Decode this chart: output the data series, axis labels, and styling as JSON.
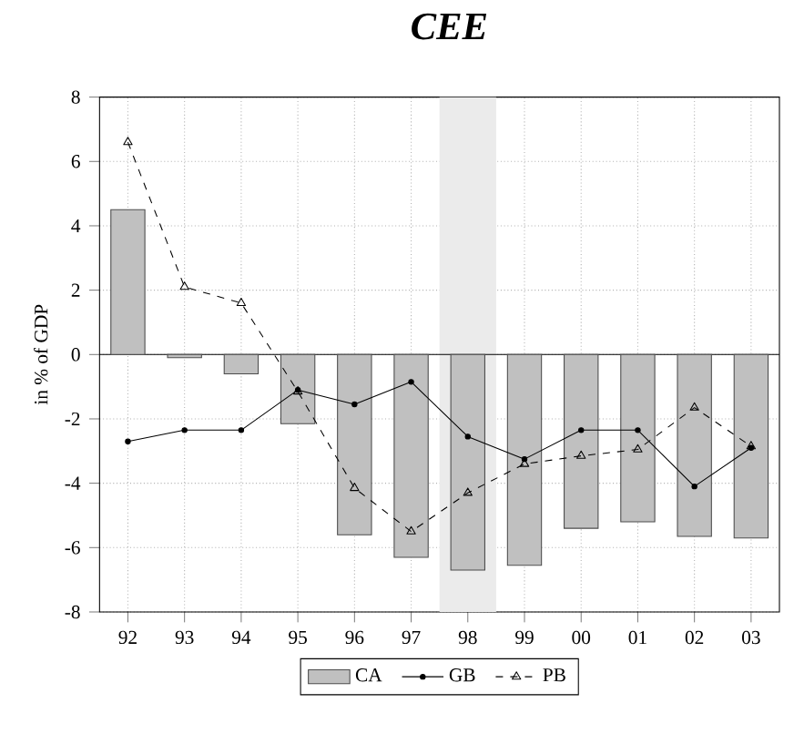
{
  "chart_data": {
    "type": "bar",
    "title": "**CEE**",
    "ylabel": "in % of GDP",
    "categories": [
      "92",
      "93",
      "94",
      "95",
      "96",
      "97",
      "98",
      "99",
      "00",
      "01",
      "02",
      "03"
    ],
    "series": [
      {
        "name": "CA",
        "color": "#c0c0c0",
        "values": [
          4.5,
          -0.1,
          -0.6,
          -2.15,
          -5.6,
          -6.3,
          -6.7,
          -6.55,
          -5.4,
          -5.2,
          -5.65,
          -5.7
        ]
      },
      {
        "name": "GB",
        "type": "line",
        "color": "#000000",
        "marker": "circle",
        "line_style": "solid",
        "values": [
          -2.7,
          -2.35,
          -2.35,
          -1.1,
          -1.55,
          -0.85,
          -2.55,
          -3.25,
          -2.35,
          -2.35,
          -4.1,
          -2.9
        ]
      },
      {
        "name": "PB",
        "type": "line",
        "color": "#000000",
        "marker": "triangle",
        "line_style": "dashed",
        "values": [
          6.6,
          2.1,
          1.6,
          -1.15,
          -4.15,
          -5.5,
          -4.3,
          -3.4,
          -3.15,
          -2.95,
          -1.65,
          -2.85
        ]
      }
    ],
    "bands": [
      {
        "axis": "x",
        "from": "98",
        "to": "98",
        "color": "#ebebeb"
      }
    ],
    "ylim": [
      -8,
      8
    ],
    "yticks": [
      -8,
      -6,
      -4,
      -2,
      0,
      2,
      4,
      6,
      8
    ],
    "grid": true,
    "legend": "bottom"
  }
}
